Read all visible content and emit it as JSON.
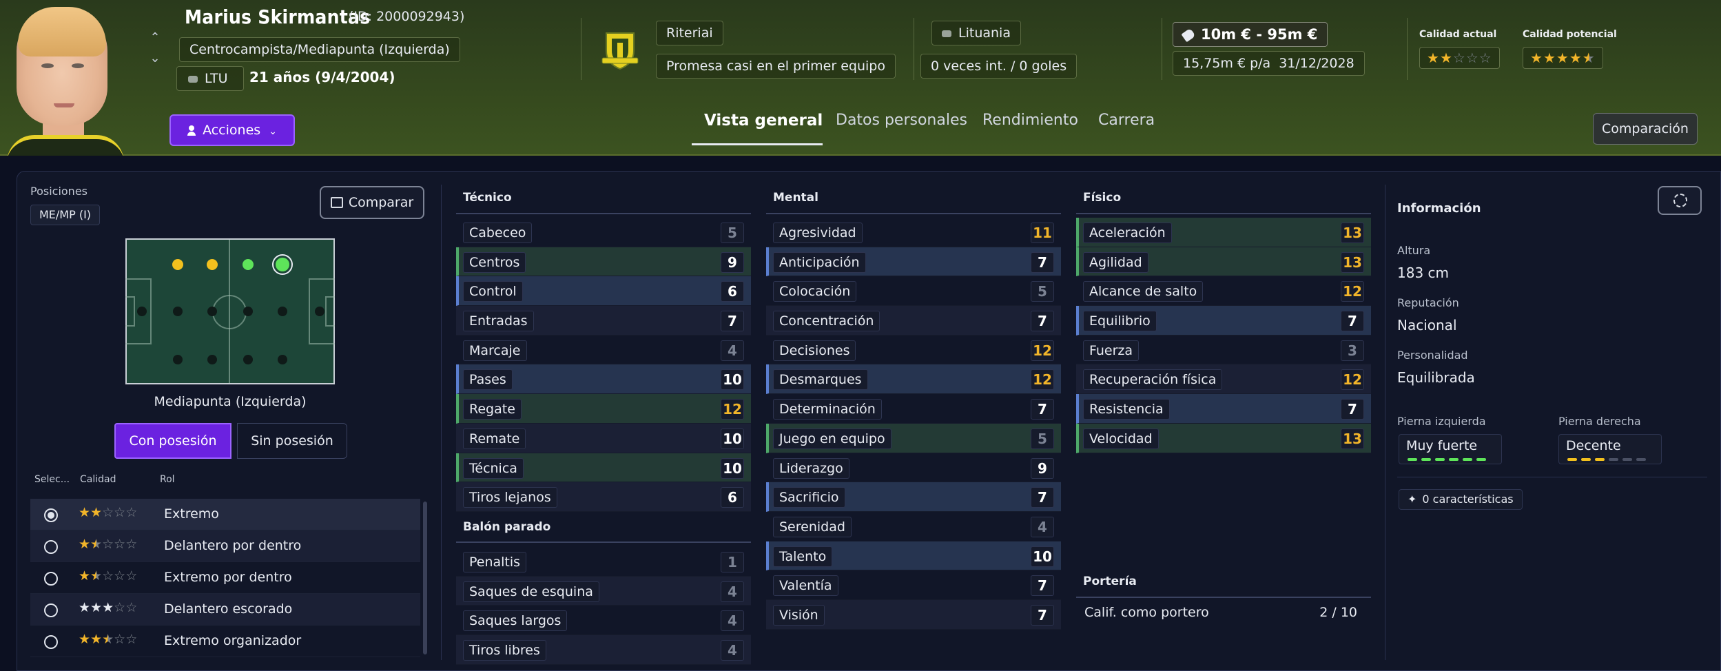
{
  "header": {
    "name": "Marius Skirmantas",
    "id": "(ID: 2000092943)",
    "position": "Centrocampista/Mediapunta (Izquierda)",
    "nation_code": "LTU",
    "age": "21 años (9/4/2004)",
    "actions_label": "Acciones",
    "club": "Riteriai",
    "status": "Promesa casi en el primer equipo",
    "country": "Lituania",
    "caps": "0 veces int. / 0 goles",
    "value": "10m € - 95m €",
    "wage": "15,75m € p/a",
    "contract_end": "31/12/2028",
    "current_ability_label": "Calidad actual",
    "potential_ability_label": "Calidad potencial",
    "current_ability_stars": 2,
    "potential_ability_stars": 4.5
  },
  "tabs": [
    "Vista general",
    "Datos personales",
    "Rendimiento",
    "Carrera"
  ],
  "compare_label": "Comparación",
  "positions": {
    "label": "Posiciones",
    "chip": "ME/MP (I)",
    "compare_button": "Comparar",
    "selected_role": "Mediapunta (Izquierda)",
    "with_ball": "Con posesión",
    "without_ball": "Sin posesión",
    "col_select": "Selec...",
    "col_quality": "Calidad",
    "col_role": "Rol",
    "roles": [
      {
        "name": "Extremo",
        "stars": 2,
        "selected": true
      },
      {
        "name": "Delantero por dentro",
        "stars": 1.5,
        "selected": false
      },
      {
        "name": "Extremo por dentro",
        "stars": 1.5,
        "selected": false
      },
      {
        "name": "Delantero escorado",
        "stars": 3,
        "selected": false
      },
      {
        "name": "Extremo organizador",
        "stars": 2.5,
        "selected": false
      }
    ]
  },
  "technical": {
    "title": "Técnico",
    "attrs": [
      {
        "name": "Cabeceo",
        "value": 5
      },
      {
        "name": "Centros",
        "value": 9,
        "hl": "green"
      },
      {
        "name": "Control",
        "value": 6,
        "hl": "blue"
      },
      {
        "name": "Entradas",
        "value": 7
      },
      {
        "name": "Marcaje",
        "value": 4
      },
      {
        "name": "Pases",
        "value": 10,
        "hl": "blue"
      },
      {
        "name": "Regate",
        "value": 12,
        "hl": "green"
      },
      {
        "name": "Remate",
        "value": 10
      },
      {
        "name": "Técnica",
        "value": 10,
        "hl": "green"
      },
      {
        "name": "Tiros lejanos",
        "value": 6
      }
    ]
  },
  "set_pieces": {
    "title": "Balón parado",
    "attrs": [
      {
        "name": "Penaltis",
        "value": 1
      },
      {
        "name": "Saques de esquina",
        "value": 4
      },
      {
        "name": "Saques largos",
        "value": 4
      },
      {
        "name": "Tiros libres",
        "value": 4
      }
    ]
  },
  "mental": {
    "title": "Mental",
    "attrs": [
      {
        "name": "Agresividad",
        "value": 11
      },
      {
        "name": "Anticipación",
        "value": 7,
        "hl": "blue"
      },
      {
        "name": "Colocación",
        "value": 5
      },
      {
        "name": "Concentración",
        "value": 7
      },
      {
        "name": "Decisiones",
        "value": 12
      },
      {
        "name": "Desmarques",
        "value": 12,
        "hl": "blue"
      },
      {
        "name": "Determinación",
        "value": 7
      },
      {
        "name": "Juego en equipo",
        "value": 5,
        "hl": "green"
      },
      {
        "name": "Liderazgo",
        "value": 9
      },
      {
        "name": "Sacrificio",
        "value": 7,
        "hl": "blue"
      },
      {
        "name": "Serenidad",
        "value": 4
      },
      {
        "name": "Talento",
        "value": 10,
        "hl": "blue"
      },
      {
        "name": "Valentía",
        "value": 7
      },
      {
        "name": "Visión",
        "value": 7
      }
    ]
  },
  "physical": {
    "title": "Físico",
    "attrs": [
      {
        "name": "Aceleración",
        "value": 13,
        "hl": "green"
      },
      {
        "name": "Agilidad",
        "value": 13,
        "hl": "green"
      },
      {
        "name": "Alcance de salto",
        "value": 12
      },
      {
        "name": "Equilibrio",
        "value": 7,
        "hl": "blue"
      },
      {
        "name": "Fuerza",
        "value": 3
      },
      {
        "name": "Recuperación física",
        "value": 12
      },
      {
        "name": "Resistencia",
        "value": 7,
        "hl": "blue"
      },
      {
        "name": "Velocidad",
        "value": 13,
        "hl": "green"
      }
    ]
  },
  "goalkeeping": {
    "title": "Portería",
    "label": "Calif. como portero",
    "value": "2 / 10"
  },
  "info": {
    "title": "Información",
    "height_label": "Altura",
    "height": "183 cm",
    "reputation_label": "Reputación",
    "reputation": "Nacional",
    "personality_label": "Personalidad",
    "personality": "Equilibrada",
    "left_foot_label": "Pierna izquierda",
    "left_foot": "Muy fuerte",
    "left_foot_level": 6,
    "right_foot_label": "Pierna derecha",
    "right_foot": "Decente",
    "right_foot_level": 3,
    "traits": "0 características"
  },
  "colors": {
    "accent": "#6b22e0",
    "high_value": "#f2b52a",
    "foot_strong": "#5ee45a",
    "foot_decent": "#f2c01e"
  },
  "icons": {
    "actions": "user-icon",
    "value": "tag-icon",
    "compare": "compare-icon",
    "info": "person-dashed-icon",
    "traits": "sparkle-icon"
  }
}
